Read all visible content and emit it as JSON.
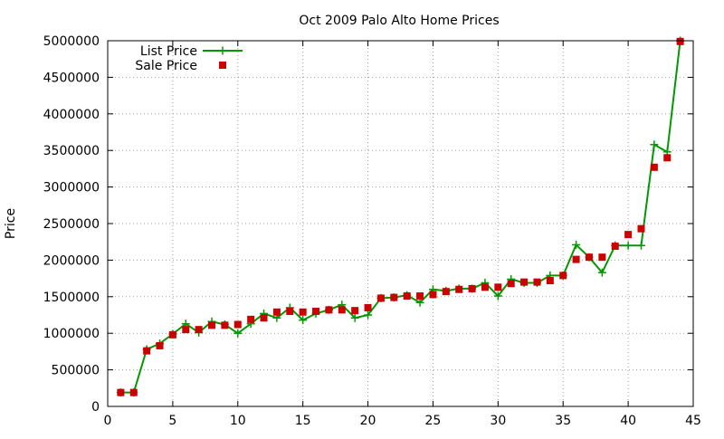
{
  "chart_data": {
    "type": "line",
    "title": "Oct 2009 Palo Alto Home Prices",
    "xlabel": "",
    "ylabel": "Price",
    "xlim": [
      0,
      45
    ],
    "ylim": [
      0,
      5000000
    ],
    "x_ticks": [
      0,
      5,
      10,
      15,
      20,
      25,
      30,
      35,
      40,
      45
    ],
    "y_ticks": [
      0,
      500000,
      1000000,
      1500000,
      2000000,
      2500000,
      3000000,
      3500000,
      4000000,
      4500000,
      5000000
    ],
    "grid": true,
    "legend_position": "top-left",
    "series": [
      {
        "name": "List Price",
        "style": "line-with-plus-markers",
        "color": "#009900",
        "x": [
          1,
          2,
          3,
          4,
          5,
          6,
          7,
          8,
          9,
          10,
          11,
          12,
          13,
          14,
          15,
          16,
          17,
          18,
          19,
          20,
          21,
          22,
          23,
          24,
          25,
          26,
          27,
          28,
          29,
          30,
          31,
          32,
          33,
          34,
          35,
          36,
          37,
          38,
          39,
          40,
          41,
          42,
          43,
          44
        ],
        "y": [
          190000,
          190000,
          780000,
          860000,
          990000,
          1130000,
          1010000,
          1160000,
          1120000,
          1000000,
          1130000,
          1270000,
          1210000,
          1350000,
          1180000,
          1270000,
          1320000,
          1390000,
          1210000,
          1250000,
          1480000,
          1490000,
          1520000,
          1420000,
          1600000,
          1580000,
          1610000,
          1610000,
          1690000,
          1510000,
          1740000,
          1690000,
          1690000,
          1790000,
          1790000,
          2210000,
          2040000,
          1830000,
          2200000,
          2200000,
          2200000,
          3580000,
          3480000,
          5000000
        ]
      },
      {
        "name": "Sale Price",
        "style": "square-markers",
        "color": "#cc0000",
        "x": [
          1,
          2,
          3,
          4,
          5,
          6,
          7,
          8,
          9,
          10,
          11,
          12,
          13,
          14,
          15,
          16,
          17,
          18,
          19,
          20,
          21,
          22,
          23,
          24,
          25,
          26,
          27,
          28,
          29,
          30,
          31,
          32,
          33,
          34,
          35,
          36,
          37,
          38,
          39,
          40,
          41,
          42,
          43,
          44
        ],
        "y": [
          190000,
          190000,
          760000,
          830000,
          980000,
          1050000,
          1050000,
          1110000,
          1110000,
          1120000,
          1190000,
          1210000,
          1290000,
          1300000,
          1290000,
          1300000,
          1320000,
          1320000,
          1310000,
          1350000,
          1480000,
          1490000,
          1510000,
          1510000,
          1530000,
          1570000,
          1600000,
          1610000,
          1630000,
          1630000,
          1680000,
          1700000,
          1700000,
          1720000,
          1790000,
          2010000,
          2040000,
          2040000,
          2190000,
          2350000,
          2430000,
          3270000,
          3400000,
          4990000
        ]
      }
    ]
  }
}
